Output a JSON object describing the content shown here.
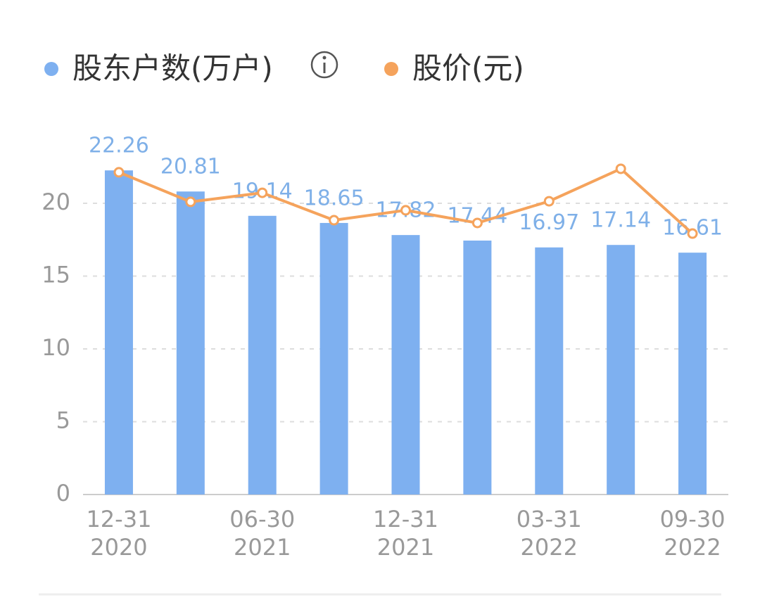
{
  "chart_data": {
    "type": "bar",
    "legend": [
      {
        "name": "股东户数(万户)",
        "color": "#7eb0f0"
      },
      {
        "name": "股价(元)",
        "color": "#f5a35c"
      }
    ],
    "categories": [
      "12-31 2020",
      null,
      "06-30 2021",
      null,
      "12-31 2021",
      null,
      "03-31 2022",
      null,
      "09-30 2022"
    ],
    "series": [
      {
        "name": "股东户数(万户)",
        "type": "bar",
        "color": "#7eb0f0",
        "values": [
          22.26,
          20.81,
          19.14,
          18.65,
          17.82,
          17.44,
          16.97,
          17.14,
          16.61
        ]
      },
      {
        "name": "股价(元)",
        "type": "line",
        "color": "#f5a35c",
        "values": [
          22.13,
          20.1,
          20.72,
          18.84,
          19.52,
          18.65,
          20.14,
          22.37,
          17.92
        ]
      }
    ],
    "ylim": [
      0,
      25
    ],
    "yticks": [
      0,
      5,
      10,
      15,
      20
    ],
    "grid": true
  }
}
